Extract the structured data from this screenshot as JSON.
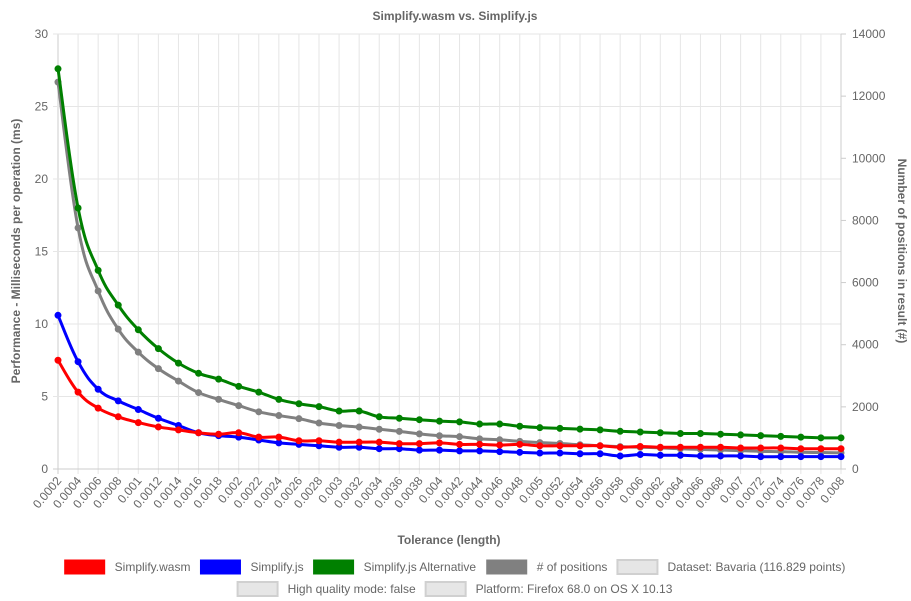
{
  "chart_data": {
    "type": "line",
    "title": "Simplify.wasm vs. Simplify.js",
    "xlabel": "Tolerance (length)",
    "ylabel_left": "Performance - Milliseconds per operation (ms)",
    "ylabel_right": "Number of positions in result (#)",
    "ylim_left": [
      0,
      30
    ],
    "ylim_right": [
      0,
      14000
    ],
    "yticks_left": [
      "0",
      "5",
      "10",
      "15",
      "20",
      "25",
      "30"
    ],
    "yticks_right": [
      "0",
      "2000",
      "4000",
      "6000",
      "8000",
      "10000",
      "12000",
      "14000"
    ],
    "grid": true,
    "legend_position": "bottom",
    "x": [
      "0.0002",
      "0.0004",
      "0.0006",
      "0.0008",
      "0.001",
      "0.0012",
      "0.0014",
      "0.0016",
      "0.0018",
      "0.002",
      "0.0022",
      "0.0024",
      "0.0026",
      "0.0028",
      "0.003",
      "0.0032",
      "0.0034",
      "0.0036",
      "0.0038",
      "0.004",
      "0.0042",
      "0.0044",
      "0.0046",
      "0.0048",
      "0.005",
      "0.0052",
      "0.0054",
      "0.0056",
      "0.0058",
      "0.006",
      "0.0062",
      "0.0064",
      "0.0066",
      "0.0068",
      "0.007",
      "0.0072",
      "0.0074",
      "0.0076",
      "0.0078",
      "0.008"
    ],
    "series": [
      {
        "name": "Simplify.wasm",
        "axis": "left",
        "color": "#ff0000",
        "values": [
          7.5,
          5.3,
          4.2,
          3.6,
          3.2,
          2.9,
          2.7,
          2.5,
          2.4,
          2.5,
          2.2,
          2.2,
          1.95,
          1.95,
          1.85,
          1.85,
          1.85,
          1.75,
          1.75,
          1.8,
          1.7,
          1.7,
          1.65,
          1.7,
          1.6,
          1.6,
          1.6,
          1.6,
          1.5,
          1.55,
          1.5,
          1.5,
          1.5,
          1.5,
          1.45,
          1.45,
          1.45,
          1.4,
          1.4,
          1.4
        ]
      },
      {
        "name": "Simplify.js",
        "axis": "left",
        "color": "#0000ff",
        "values": [
          10.6,
          7.4,
          5.5,
          4.7,
          4.1,
          3.5,
          3.0,
          2.5,
          2.3,
          2.2,
          2.0,
          1.8,
          1.7,
          1.6,
          1.5,
          1.5,
          1.4,
          1.4,
          1.3,
          1.3,
          1.25,
          1.25,
          1.2,
          1.15,
          1.1,
          1.1,
          1.05,
          1.05,
          0.9,
          1.0,
          0.95,
          0.95,
          0.9,
          0.9,
          0.9,
          0.85,
          0.85,
          0.85,
          0.85,
          0.85
        ]
      },
      {
        "name": "Simplify.js Alternative",
        "axis": "left",
        "color": "#008000",
        "values": [
          27.6,
          18.0,
          13.7,
          11.3,
          9.6,
          8.3,
          7.3,
          6.6,
          6.2,
          5.7,
          5.3,
          4.8,
          4.5,
          4.3,
          4.0,
          4.0,
          3.6,
          3.5,
          3.4,
          3.3,
          3.25,
          3.1,
          3.1,
          2.95,
          2.85,
          2.8,
          2.75,
          2.7,
          2.6,
          2.55,
          2.5,
          2.45,
          2.45,
          2.4,
          2.35,
          2.3,
          2.25,
          2.2,
          2.15,
          2.15
        ]
      },
      {
        "name": "# of positions",
        "axis": "right",
        "color": "#808080",
        "values": [
          12450,
          7760,
          5730,
          4500,
          3760,
          3230,
          2830,
          2460,
          2240,
          2040,
          1840,
          1720,
          1620,
          1480,
          1400,
          1350,
          1280,
          1210,
          1130,
          1070,
          1040,
          970,
          940,
          890,
          850,
          820,
          780,
          750,
          720,
          700,
          680,
          650,
          630,
          610,
          590,
          570,
          560,
          540,
          530,
          520
        ]
      }
    ],
    "legend_extra": [
      "Dataset: Bavaria (116.829 points)",
      "High quality mode: false",
      "Platform: Firefox 68.0 on OS X 10.13"
    ]
  }
}
